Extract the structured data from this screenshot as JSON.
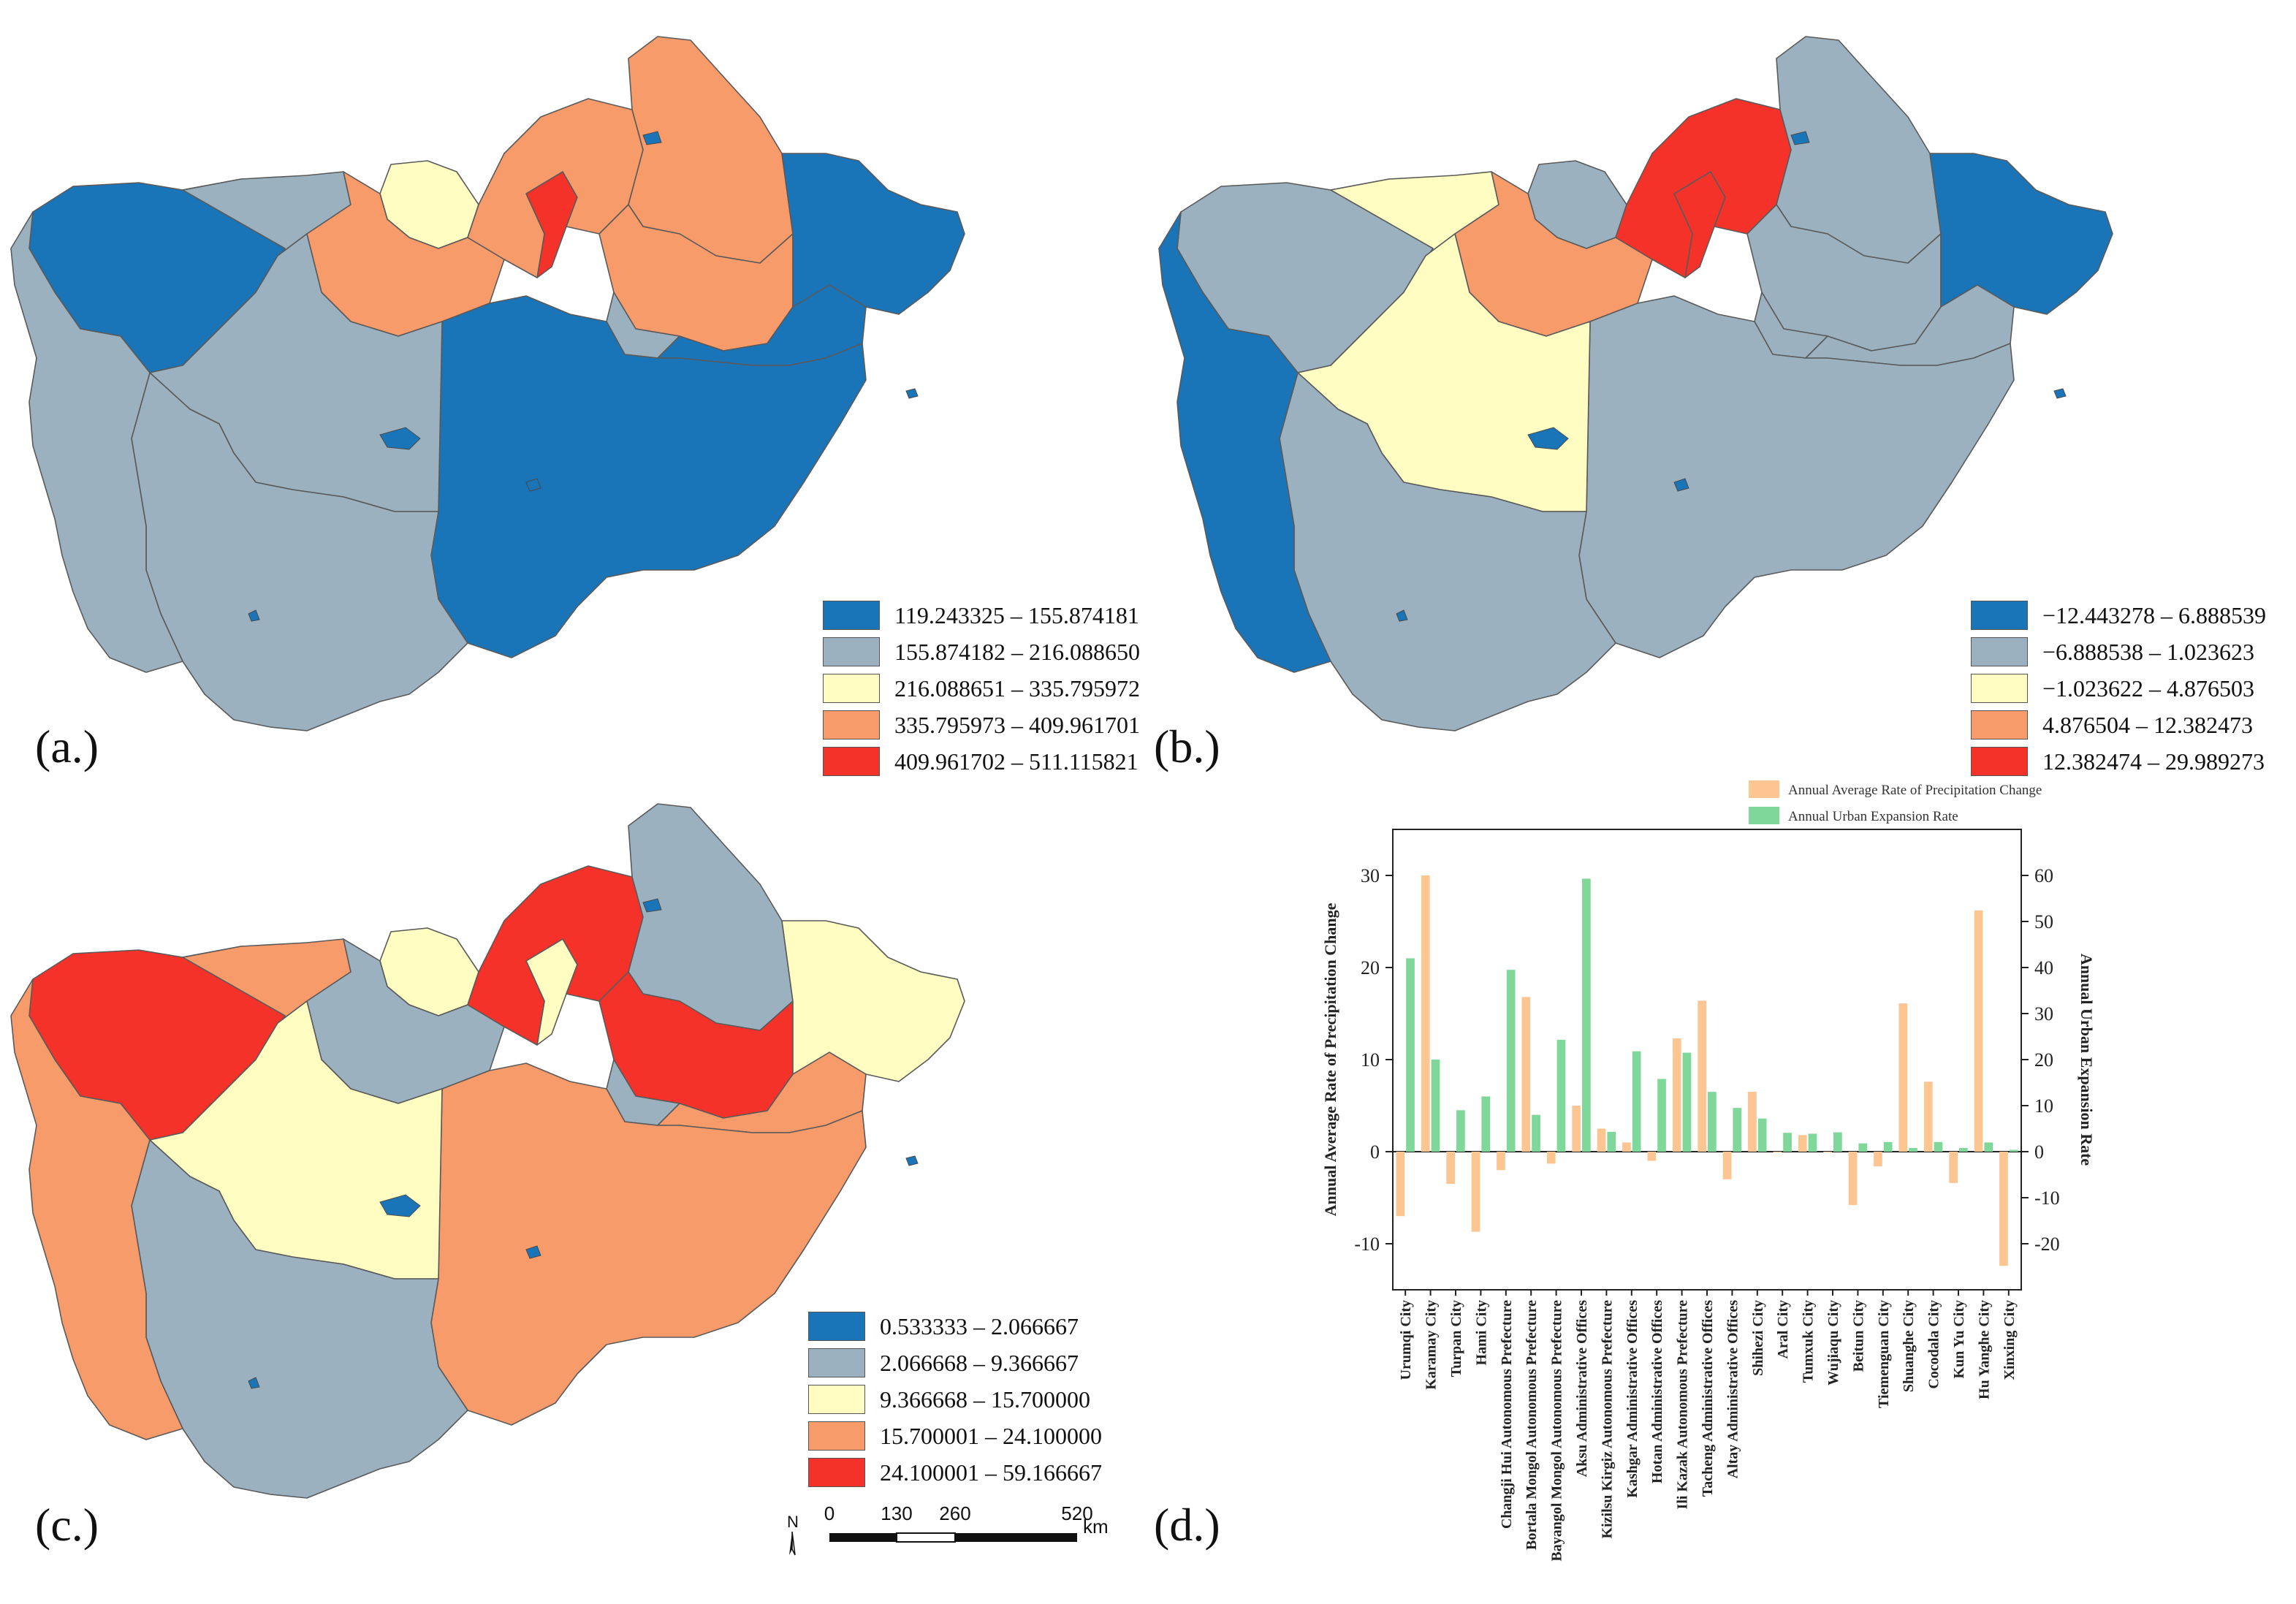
{
  "panels": {
    "a": {
      "label": "(a.)",
      "legend": [
        {
          "range": "119.243325 – 155.874181",
          "color": "#1a74b8"
        },
        {
          "range": "155.874182 – 216.088650",
          "color": "#9bb1bf"
        },
        {
          "range": "216.088651 – 335.795972",
          "color": "#fffdc1"
        },
        {
          "range": "335.795973 – 409.961701",
          "color": "#f89b6b"
        },
        {
          "range": "409.961702 – 511.115821",
          "color": "#f5322a"
        }
      ],
      "regions": [
        "#1a74b8",
        "#9bb1bf",
        "#fffdc1",
        "#f89b6b",
        "#f5322a",
        "#f89b6b",
        "#f89b6b",
        "#f89b6b",
        "#9bb1bf",
        "#1a74b8",
        "#1a74b8",
        "#1a74b8",
        "#9bb1bf",
        "#9bb1bf",
        "#9bb1bf"
      ]
    },
    "b": {
      "label": "(b.)",
      "legend": [
        {
          "range": "−12.443278 – 6.888539",
          "color": "#1a74b8"
        },
        {
          "range": "−6.888538 – 1.023623",
          "color": "#9bb1bf"
        },
        {
          "range": "−1.023622 – 4.876503",
          "color": "#fffdc1"
        },
        {
          "range": "4.876504 – 12.382473",
          "color": "#f89b6b"
        },
        {
          "range": "12.382474 – 29.989273",
          "color": "#f5322a"
        }
      ],
      "regions": [
        "#9bb1bf",
        "#fffdc1",
        "#9bb1bf",
        "#f89b6b",
        "#f5322a",
        "#f5322a",
        "#9bb1bf",
        "#9bb1bf",
        "#9bb1bf",
        "#1a74b8",
        "#9bb1bf",
        "#9bb1bf",
        "#fffdc1",
        "#9bb1bf",
        "#1a74b8"
      ]
    },
    "c": {
      "label": "(c.)",
      "legend": [
        {
          "range": "0.533333 – 2.066667",
          "color": "#1a74b8"
        },
        {
          "range": "2.066668 – 9.366667",
          "color": "#9bb1bf"
        },
        {
          "range": "9.366668 – 15.700000",
          "color": "#fffdc1"
        },
        {
          "range": "15.700001 – 24.100000",
          "color": "#f89b6b"
        },
        {
          "range": "24.100001 – 59.166667",
          "color": "#f5322a"
        }
      ],
      "regions": [
        "#f5322a",
        "#f89b6b",
        "#fffdc1",
        "#9bb1bf",
        "#fffdc1",
        "#f5322a",
        "#9bb1bf",
        "#f5322a",
        "#9bb1bf",
        "#fffdc1",
        "#f89b6b",
        "#f89b6b",
        "#fffdc1",
        "#9bb1bf",
        "#f89b6b"
      ],
      "scalebar": {
        "north": "N",
        "ticks": [
          "0",
          "130",
          "260",
          "520"
        ],
        "unit": "km"
      }
    },
    "d": {
      "label": "(d.)"
    }
  },
  "chart_data": {
    "type": "bar",
    "legend": [
      {
        "name": "Annual Average Rate of Precipitation Change",
        "color": "#fcc592"
      },
      {
        "name": "Annual Urban Expansion Rate",
        "color": "#7fd79a"
      }
    ],
    "categories": [
      "Urumqi City",
      "Karamay City",
      "Turpan City",
      "Hami City",
      "Changji Hui Autonomous Prefecture",
      "Bortala Mongol Autonomous Prefecture",
      "Bayangol Mongol Autonomous Prefecture",
      "Aksu Administrative Offices",
      "Kizilsu Kirgiz Autonomous Prefecture",
      "Kashgar Administrative Offices",
      "Hotan Administrative Offices",
      "Ili Kazak Autonomous Prefecture",
      "Tacheng Administrative Offices",
      "Altay Administrative Offices",
      "Shihezi City",
      "Aral City",
      "Tumxuk City",
      "Wujiaqu City",
      "Beitun City",
      "Tiemenguan City",
      "Shuanghe City",
      "Cocodala City",
      "Kun Yu City",
      "Hu Yanghe City",
      "Xinxing City"
    ],
    "series": [
      {
        "name": "Annual Average Rate of Precipitation Change",
        "axis": "left",
        "values": [
          -7,
          30,
          -3.5,
          -8.7,
          -2,
          16.8,
          -1.3,
          5,
          2.5,
          1,
          -1,
          12.3,
          16.4,
          -3,
          6.5,
          0,
          1.8,
          0,
          -5.8,
          -1.6,
          16.1,
          7.6,
          -3.4,
          26.2,
          -12.4
        ]
      },
      {
        "name": "Annual Urban Expansion Rate",
        "axis": "right",
        "values": [
          42,
          20,
          9,
          12,
          39.5,
          8,
          24.3,
          59.3,
          4.3,
          21.8,
          15.8,
          21.5,
          13,
          9.5,
          7.2,
          4.1,
          3.9,
          4.2,
          1.8,
          2.1,
          0.8,
          2.1,
          0.8,
          2,
          0.4
        ]
      }
    ],
    "ylabel_left": "Annual Average Rate of Precipitation Change",
    "ylabel_right": "Annual Urban Expansion Rate",
    "ylim_left": [
      -15,
      35
    ],
    "ylim_right": [
      -30,
      70
    ],
    "yticks_left": [
      -10,
      0,
      10,
      20,
      30
    ],
    "yticks_right": [
      -20,
      -10,
      0,
      10,
      20,
      30,
      40,
      50,
      60
    ]
  }
}
